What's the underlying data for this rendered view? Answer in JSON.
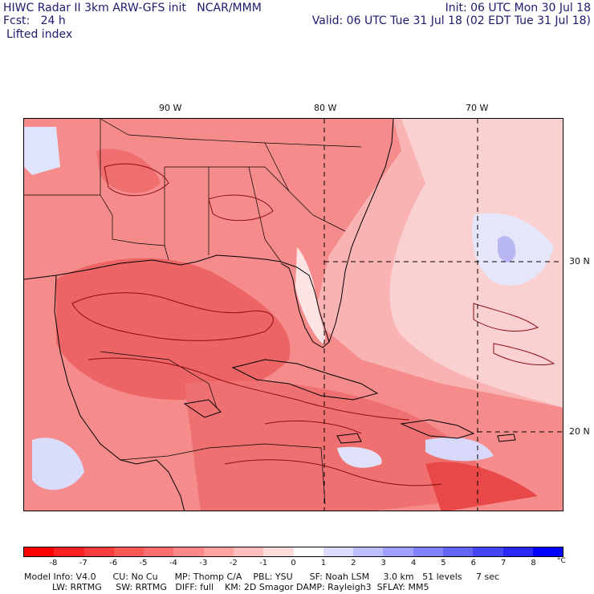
{
  "header": {
    "title": "HIWC Radar II 3km ARW-GFS init   NCAR/MMM",
    "forecast": "Fcst:   24 h",
    "field": "Lifted index",
    "init": "Init: 06 UTC Mon 30 Jul 18",
    "valid": "Valid: 06 UTC Tue 31 Jul 18 (02 EDT Tue 31 Jul 18)"
  },
  "map": {
    "lon_labels": [
      "90 W",
      "80 W",
      "70 W"
    ],
    "lat_labels": [
      "30 N",
      "20 N"
    ]
  },
  "colorbar": {
    "levels": [
      "-8",
      "-7",
      "-6",
      "-5",
      "-4",
      "-3",
      "-2",
      "-1",
      "0",
      "1",
      "2",
      "3",
      "4",
      "5",
      "6",
      "7",
      "8"
    ],
    "unit": "°C",
    "colors": [
      "#ff0000",
      "#ff2222",
      "#ff3c3c",
      "#ff5656",
      "#ff6e6e",
      "#ff8888",
      "#ffa2a2",
      "#ffbebe",
      "#ffdcdc",
      "#ffffff",
      "#dcdcff",
      "#bebeff",
      "#a0a0ff",
      "#8282ff",
      "#6464ff",
      "#4646ff",
      "#2828ff",
      "#0000ff"
    ]
  },
  "footer": {
    "line1": "Model Info: V4.0      CU: No Cu      MP: Thomp C/A    PBL: YSU      SF: Noah LSM     3.0 km   51 levels     7 sec",
    "line2": "          LW: RRTMG     SW: RRTMG   DIFF: full    KM: 2D Smagor DAMP: Rayleigh3  SFLAY: MM5"
  }
}
